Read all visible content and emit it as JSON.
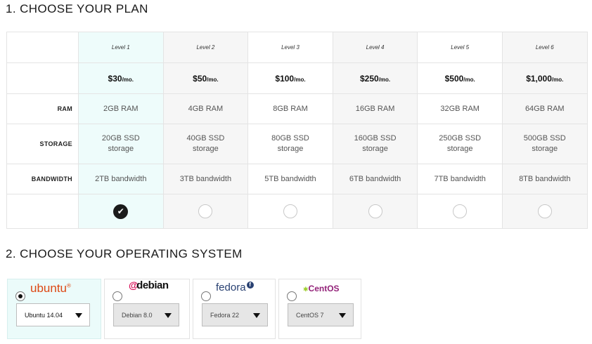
{
  "step1": {
    "title": "1. CHOOSE YOUR PLAN"
  },
  "plans": [
    {
      "level": "Level 1",
      "price": "$30",
      "per": "/mo.",
      "ram": "2GB RAM",
      "storage_line1": "20GB SSD",
      "storage_line2": "storage",
      "bandwidth": "2TB bandwidth",
      "selected": true
    },
    {
      "level": "Level 2",
      "price": "$50",
      "per": "/mo.",
      "ram": "4GB RAM",
      "storage_line1": "40GB SSD",
      "storage_line2": "storage",
      "bandwidth": "3TB bandwidth",
      "selected": false
    },
    {
      "level": "Level 3",
      "price": "$100",
      "per": "/mo.",
      "ram": "8GB RAM",
      "storage_line1": "80GB SSD",
      "storage_line2": "storage",
      "bandwidth": "5TB bandwidth",
      "selected": false
    },
    {
      "level": "Level 4",
      "price": "$250",
      "per": "/mo.",
      "ram": "16GB RAM",
      "storage_line1": "160GB SSD",
      "storage_line2": "storage",
      "bandwidth": "6TB bandwidth",
      "selected": false
    },
    {
      "level": "Level 5",
      "price": "$500",
      "per": "/mo.",
      "ram": "32GB RAM",
      "storage_line1": "250GB SSD",
      "storage_line2": "storage",
      "bandwidth": "7TB bandwidth",
      "selected": false
    },
    {
      "level": "Level 6",
      "price": "$1,000",
      "per": "/mo.",
      "ram": "64GB RAM",
      "storage_line1": "500GB SSD",
      "storage_line2": "storage",
      "bandwidth": "8TB bandwidth",
      "selected": false
    }
  ],
  "row_labels": {
    "ram": "RAM",
    "storage": "STORAGE",
    "bandwidth": "BANDWIDTH"
  },
  "step2": {
    "title": "2. CHOOSE YOUR OPERATING SYSTEM"
  },
  "os": [
    {
      "logo_text": "ubuntu",
      "logo_mark": "®",
      "version": "Ubuntu 14.04",
      "selected": true
    },
    {
      "logo_text": "debian",
      "logo_mark": "@",
      "version": "Debian 8.0",
      "selected": false
    },
    {
      "logo_text": "fedora",
      "logo_mark": "f",
      "version": "Fedora 22",
      "selected": false
    },
    {
      "logo_text": "CentOS",
      "logo_mark": "✱",
      "version": "CentOS 7",
      "selected": false
    }
  ],
  "icons": {
    "check": "check-circle-icon",
    "radio": "radio-empty-icon",
    "dropdown": "caret-down-icon"
  },
  "colors": {
    "selected_column": "#eefcfb",
    "shaded_column": "#f6f6f6",
    "ubuntu": "#dd4814",
    "debian": "#d70751",
    "fedora": "#294172",
    "centos": "#932279"
  }
}
